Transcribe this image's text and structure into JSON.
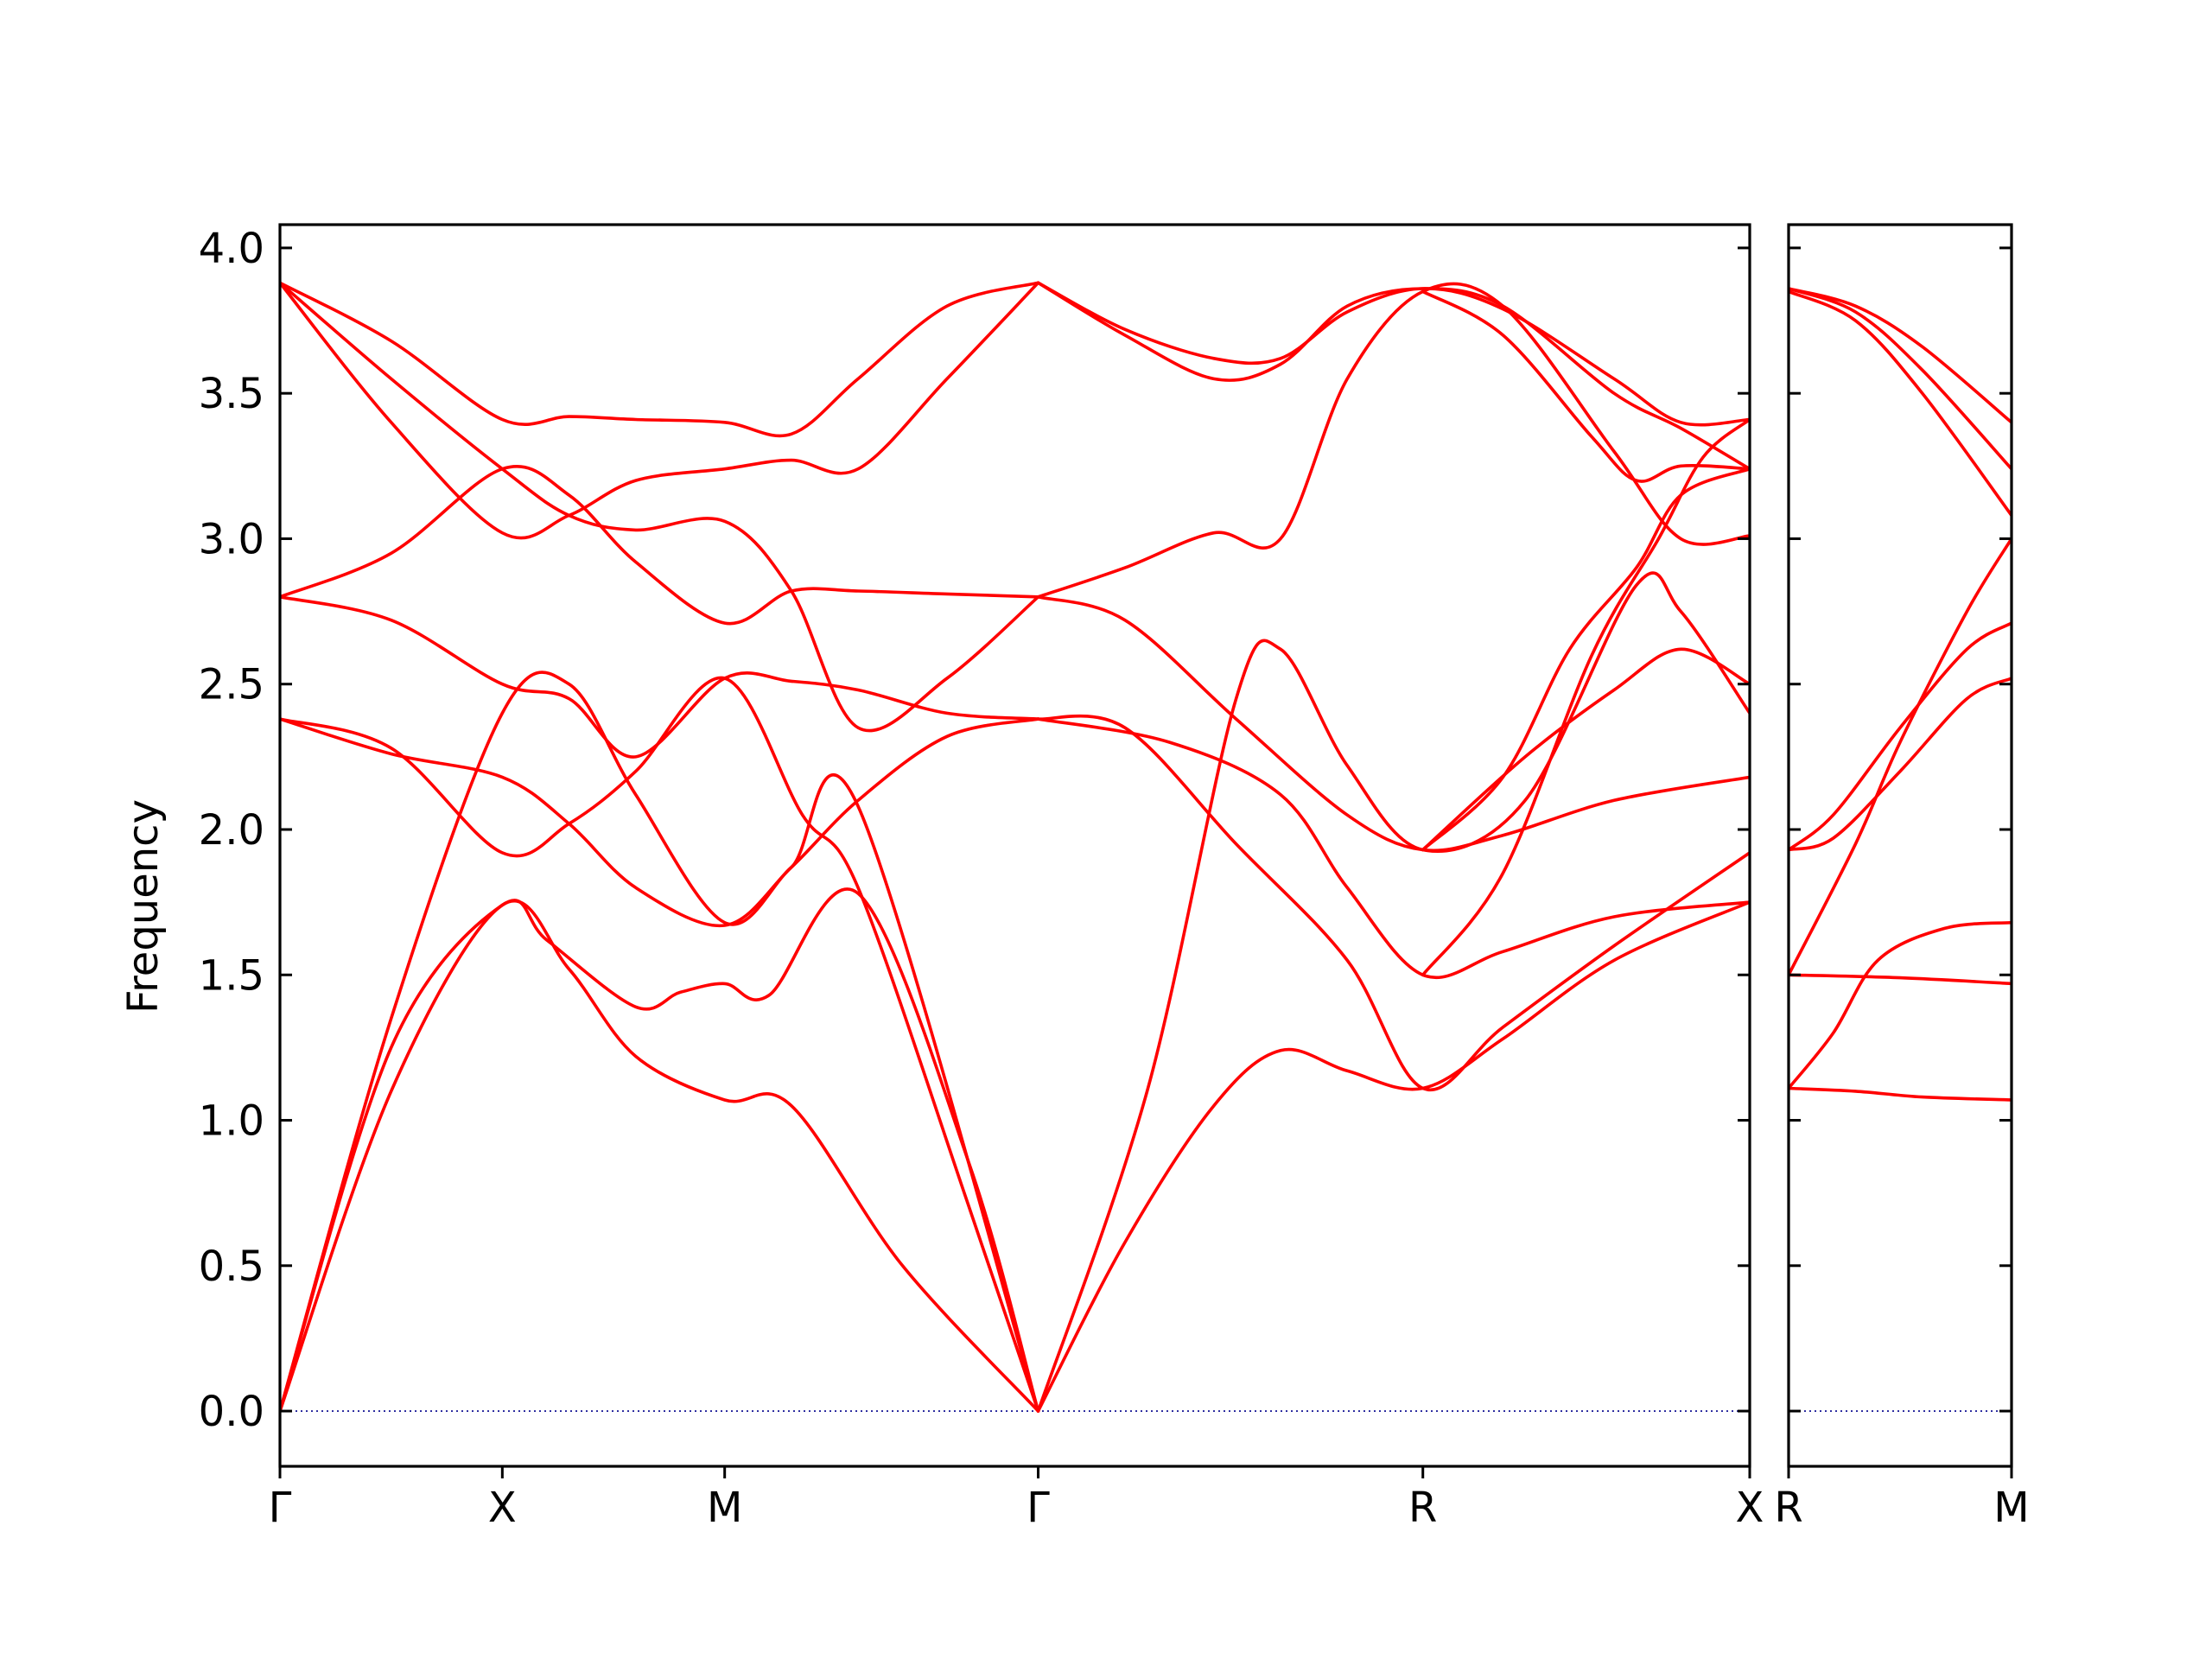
{
  "chart_data": {
    "type": "line",
    "ylabel": "Frequency",
    "ylim": [
      -0.19,
      4.08
    ],
    "yticks": [
      0.0,
      0.5,
      1.0,
      1.5,
      2.0,
      2.5,
      3.0,
      3.5,
      4.0
    ],
    "ytick_labels": [
      "0.0",
      "0.5",
      "1.0",
      "1.5",
      "2.0",
      "2.5",
      "3.0",
      "3.5",
      "4.0"
    ],
    "zero_line_color": "#00008b",
    "band_color": "#ff0000",
    "grid": false,
    "panels": [
      {
        "x_range": [
          0,
          6.61
        ],
        "ticks": [
          {
            "x": 0,
            "label": "Γ"
          },
          {
            "x": 1.0,
            "label": "X"
          },
          {
            "x": 2.0,
            "label": "M"
          },
          {
            "x": 3.41,
            "label": "Γ"
          },
          {
            "x": 5.14,
            "label": "R"
          },
          {
            "x": 6.61,
            "label": "X"
          }
        ],
        "bands": [
          [
            [
              0,
              0
            ],
            [
              0.5,
              1.1
            ],
            [
              1.0,
              1.74
            ],
            [
              1.3,
              1.52
            ],
            [
              1.6,
              1.22
            ],
            [
              2.0,
              1.07
            ],
            [
              2.3,
              1.05
            ],
            [
              2.8,
              0.5
            ],
            [
              3.41,
              0
            ]
          ],
          [
            [
              0,
              0
            ],
            [
              0.5,
              1.25
            ],
            [
              1.0,
              1.74
            ],
            [
              1.2,
              1.62
            ],
            [
              1.6,
              1.39
            ],
            [
              1.8,
              1.44
            ],
            [
              2.0,
              1.47
            ],
            [
              2.2,
              1.43
            ],
            [
              2.6,
              1.78
            ],
            [
              3.1,
              0.85
            ],
            [
              3.41,
              0
            ]
          ],
          [
            [
              0,
              0
            ],
            [
              0.5,
              1.35
            ],
            [
              1.0,
              2.4
            ],
            [
              1.3,
              2.5
            ],
            [
              1.6,
              2.12
            ],
            [
              2.0,
              1.68
            ],
            [
              2.3,
              1.87
            ],
            [
              2.6,
              2.08
            ],
            [
              3.41,
              0
            ]
          ],
          [
            [
              0,
              2.38
            ],
            [
              0.5,
              2.28
            ],
            [
              1.0,
              1.92
            ],
            [
              1.3,
              2.02
            ],
            [
              1.6,
              2.2
            ],
            [
              2.0,
              2.52
            ],
            [
              2.35,
              2.05
            ],
            [
              2.6,
              1.8
            ],
            [
              3.1,
              0.7
            ],
            [
              3.41,
              0
            ]
          ],
          [
            [
              0,
              2.38
            ],
            [
              0.5,
              2.26
            ],
            [
              1.0,
              2.18
            ],
            [
              1.3,
              2.02
            ],
            [
              1.6,
              1.8
            ],
            [
              2.0,
              1.67
            ],
            [
              2.3,
              1.87
            ],
            [
              2.6,
              2.1
            ],
            [
              3.0,
              2.32
            ],
            [
              3.41,
              2.38
            ]
          ],
          [
            [
              0,
              2.8
            ],
            [
              0.5,
              2.72
            ],
            [
              1.0,
              2.5
            ],
            [
              1.3,
              2.45
            ],
            [
              1.6,
              2.25
            ],
            [
              2.0,
              2.52
            ],
            [
              2.3,
              2.51
            ],
            [
              2.6,
              2.48
            ],
            [
              3.0,
              2.4
            ],
            [
              3.41,
              2.38
            ]
          ],
          [
            [
              0,
              2.8
            ],
            [
              0.5,
              2.95
            ],
            [
              1.0,
              3.24
            ],
            [
              1.3,
              3.15
            ],
            [
              1.6,
              2.92
            ],
            [
              2.0,
              2.71
            ],
            [
              2.3,
              2.82
            ],
            [
              2.6,
              2.82
            ],
            [
              3.0,
              2.81
            ],
            [
              3.41,
              2.8
            ]
          ],
          [
            [
              0,
              3.88
            ],
            [
              0.5,
              3.4
            ],
            [
              1.0,
              3.02
            ],
            [
              1.3,
              3.08
            ],
            [
              1.6,
              3.2
            ],
            [
              2.0,
              3.24
            ],
            [
              2.3,
              3.27
            ],
            [
              2.6,
              3.24
            ],
            [
              3.0,
              3.55
            ],
            [
              3.41,
              3.88
            ]
          ],
          [
            [
              0,
              3.88
            ],
            [
              0.5,
              3.55
            ],
            [
              1.0,
              3.24
            ],
            [
              1.3,
              3.08
            ],
            [
              1.6,
              3.03
            ],
            [
              2.0,
              3.06
            ],
            [
              2.3,
              2.82
            ],
            [
              2.6,
              2.35
            ],
            [
              3.0,
              2.52
            ],
            [
              3.41,
              2.8
            ]
          ],
          [
            [
              0,
              3.88
            ],
            [
              0.5,
              3.68
            ],
            [
              1.0,
              3.41
            ],
            [
              1.3,
              3.42
            ],
            [
              1.6,
              3.41
            ],
            [
              2.0,
              3.4
            ],
            [
              2.3,
              3.36
            ],
            [
              2.6,
              3.55
            ],
            [
              3.0,
              3.8
            ],
            [
              3.41,
              3.88
            ]
          ],
          [
            [
              3.41,
              0
            ],
            [
              3.9,
              1.1
            ],
            [
              4.3,
              2.45
            ],
            [
              4.5,
              2.62
            ],
            [
              4.8,
              2.22
            ],
            [
              5.14,
              1.93
            ],
            [
              5.6,
              2.1
            ],
            [
              6.1,
              2.84
            ],
            [
              6.3,
              2.75
            ],
            [
              6.61,
              2.4
            ]
          ],
          [
            [
              3.41,
              0
            ],
            [
              3.8,
              0.58
            ],
            [
              4.2,
              1.05
            ],
            [
              4.5,
              1.24
            ],
            [
              4.8,
              1.17
            ],
            [
              5.14,
              1.11
            ],
            [
              5.5,
              1.28
            ],
            [
              6.0,
              1.55
            ],
            [
              6.61,
              1.75
            ]
          ],
          [
            [
              3.41,
              2.38
            ],
            [
              4.0,
              2.3
            ],
            [
              4.5,
              2.12
            ],
            [
              4.8,
              1.8
            ],
            [
              5.14,
              1.5
            ],
            [
              5.5,
              1.58
            ],
            [
              6.0,
              1.7
            ],
            [
              6.61,
              1.75
            ]
          ],
          [
            [
              3.41,
              2.38
            ],
            [
              3.8,
              2.35
            ],
            [
              4.3,
              1.95
            ],
            [
              4.8,
              1.55
            ],
            [
              5.14,
              1.11
            ],
            [
              5.5,
              1.32
            ],
            [
              6.0,
              1.6
            ],
            [
              6.61,
              1.92
            ]
          ],
          [
            [
              3.41,
              2.8
            ],
            [
              3.8,
              2.72
            ],
            [
              4.3,
              2.38
            ],
            [
              4.8,
              2.05
            ],
            [
              5.14,
              1.93
            ],
            [
              5.5,
              1.98
            ],
            [
              6.0,
              2.1
            ],
            [
              6.61,
              2.18
            ]
          ],
          [
            [
              3.41,
              2.8
            ],
            [
              3.8,
              2.9
            ],
            [
              4.2,
              3.02
            ],
            [
              4.5,
              3.0
            ],
            [
              4.8,
              3.55
            ],
            [
              5.14,
              3.85
            ],
            [
              5.5,
              3.8
            ],
            [
              6.0,
              3.3
            ],
            [
              6.3,
              3.0
            ],
            [
              6.61,
              3.01
            ]
          ],
          [
            [
              3.41,
              3.88
            ],
            [
              3.8,
              3.7
            ],
            [
              4.2,
              3.55
            ],
            [
              4.5,
              3.6
            ],
            [
              4.8,
              3.8
            ],
            [
              5.14,
              3.86
            ],
            [
              5.5,
              3.8
            ],
            [
              6.0,
              3.5
            ],
            [
              6.3,
              3.38
            ],
            [
              6.61,
              3.24
            ]
          ],
          [
            [
              3.41,
              3.88
            ],
            [
              3.8,
              3.72
            ],
            [
              4.2,
              3.62
            ],
            [
              4.5,
              3.62
            ],
            [
              4.8,
              3.78
            ],
            [
              5.14,
              3.86
            ],
            [
              5.5,
              3.79
            ],
            [
              6.0,
              3.55
            ],
            [
              6.3,
              3.4
            ],
            [
              6.61,
              3.41
            ]
          ],
          [
            [
              5.14,
              1.93
            ],
            [
              5.5,
              2.18
            ],
            [
              5.8,
              2.62
            ],
            [
              6.1,
              2.9
            ],
            [
              6.3,
              3.15
            ],
            [
              6.61,
              3.24
            ]
          ],
          [
            [
              5.14,
              1.93
            ],
            [
              5.6,
              2.25
            ],
            [
              6.0,
              2.48
            ],
            [
              6.3,
              2.62
            ],
            [
              6.61,
              2.5
            ]
          ],
          [
            [
              5.14,
              1.5
            ],
            [
              5.5,
              1.85
            ],
            [
              5.9,
              2.6
            ],
            [
              6.2,
              3.0
            ],
            [
              6.4,
              3.28
            ],
            [
              6.61,
              3.41
            ]
          ],
          [
            [
              5.14,
              3.85
            ],
            [
              5.5,
              3.7
            ],
            [
              5.9,
              3.35
            ],
            [
              6.1,
              3.2
            ],
            [
              6.3,
              3.25
            ],
            [
              6.61,
              3.24
            ]
          ]
        ]
      },
      {
        "x_range": [
          0,
          1.0
        ],
        "ticks": [
          {
            "x": 0,
            "label": "R"
          },
          {
            "x": 1.0,
            "label": "M"
          }
        ],
        "bands": [
          [
            [
              0,
              1.11
            ],
            [
              0.3,
              1.1
            ],
            [
              0.6,
              1.08
            ],
            [
              1.0,
              1.07
            ]
          ],
          [
            [
              0,
              1.11
            ],
            [
              0.2,
              1.3
            ],
            [
              0.4,
              1.55
            ],
            [
              0.7,
              1.66
            ],
            [
              1.0,
              1.68
            ]
          ],
          [
            [
              0,
              1.5
            ],
            [
              0.5,
              1.49
            ],
            [
              1.0,
              1.47
            ]
          ],
          [
            [
              0,
              1.5
            ],
            [
              0.3,
              1.95
            ],
            [
              0.5,
              2.3
            ],
            [
              0.8,
              2.75
            ],
            [
              1.0,
              3.0
            ]
          ],
          [
            [
              0,
              1.93
            ],
            [
              0.2,
              1.97
            ],
            [
              0.5,
              2.2
            ],
            [
              0.8,
              2.45
            ],
            [
              1.0,
              2.52
            ]
          ],
          [
            [
              0,
              1.93
            ],
            [
              0.2,
              2.05
            ],
            [
              0.5,
              2.35
            ],
            [
              0.8,
              2.62
            ],
            [
              1.0,
              2.71
            ]
          ],
          [
            [
              0,
              3.85
            ],
            [
              0.3,
              3.75
            ],
            [
              0.6,
              3.5
            ],
            [
              1.0,
              3.08
            ]
          ],
          [
            [
              0,
              3.86
            ],
            [
              0.3,
              3.78
            ],
            [
              0.6,
              3.58
            ],
            [
              1.0,
              3.24
            ]
          ],
          [
            [
              0,
              3.86
            ],
            [
              0.3,
              3.8
            ],
            [
              0.6,
              3.66
            ],
            [
              1.0,
              3.4
            ]
          ]
        ]
      }
    ]
  }
}
